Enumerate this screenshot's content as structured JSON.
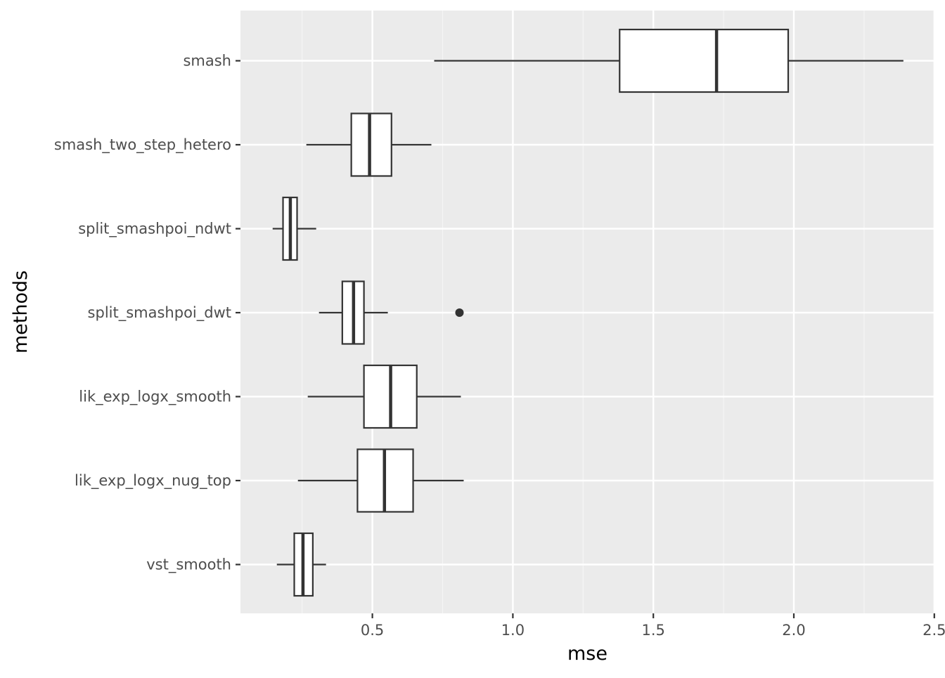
{
  "chart_data": {
    "type": "boxplot",
    "orientation": "horizontal",
    "xlabel": "mse",
    "ylabel": "methods",
    "xlim": [
      0.03,
      2.5
    ],
    "x_ticks": [
      {
        "value": 0.5,
        "label": "0.5"
      },
      {
        "value": 1.0,
        "label": "1.0"
      },
      {
        "value": 1.5,
        "label": "1.5"
      },
      {
        "value": 2.0,
        "label": "2.0"
      },
      {
        "value": 2.5,
        "label": "2.5"
      }
    ],
    "x_minor_ticks": [
      0.25,
      0.75,
      1.25,
      1.75,
      2.25
    ],
    "grid": true,
    "categories": [
      "smash",
      "smash_two_step_hetero",
      "split_smashpoi_ndwt",
      "split_smashpoi_dwt",
      "lik_exp_logx_smooth",
      "lik_exp_logx_nug_top",
      "vst_smooth"
    ],
    "boxes": [
      {
        "method": "smash",
        "whisker_low": 0.72,
        "q1": 1.38,
        "median": 1.725,
        "q3": 1.98,
        "whisker_high": 2.39,
        "outliers": []
      },
      {
        "method": "smash_two_step_hetero",
        "whisker_low": 0.265,
        "q1": 0.425,
        "median": 0.49,
        "q3": 0.568,
        "whisker_high": 0.71,
        "outliers": []
      },
      {
        "method": "split_smashpoi_ndwt",
        "whisker_low": 0.145,
        "q1": 0.182,
        "median": 0.208,
        "q3": 0.232,
        "whisker_high": 0.3,
        "outliers": []
      },
      {
        "method": "split_smashpoi_dwt",
        "whisker_low": 0.31,
        "q1": 0.393,
        "median": 0.433,
        "q3": 0.47,
        "whisker_high": 0.555,
        "outliers": [
          0.81
        ]
      },
      {
        "method": "lik_exp_logx_smooth",
        "whisker_low": 0.27,
        "q1": 0.47,
        "median": 0.565,
        "q3": 0.658,
        "whisker_high": 0.815,
        "outliers": []
      },
      {
        "method": "lik_exp_logx_nug_top",
        "whisker_low": 0.235,
        "q1": 0.447,
        "median": 0.543,
        "q3": 0.645,
        "whisker_high": 0.825,
        "outliers": []
      },
      {
        "method": "vst_smooth",
        "whisker_low": 0.16,
        "q1": 0.222,
        "median": 0.253,
        "q3": 0.288,
        "whisker_high": 0.335,
        "outliers": []
      }
    ],
    "colors": {
      "panel_background": "#ebebeb",
      "grid_major": "#ffffff",
      "grid_minor": "#f5f5f5",
      "box_fill": "#ffffff",
      "box_stroke": "#333333",
      "tick_label": "#4d4d4d",
      "axis_title": "#000000"
    }
  }
}
